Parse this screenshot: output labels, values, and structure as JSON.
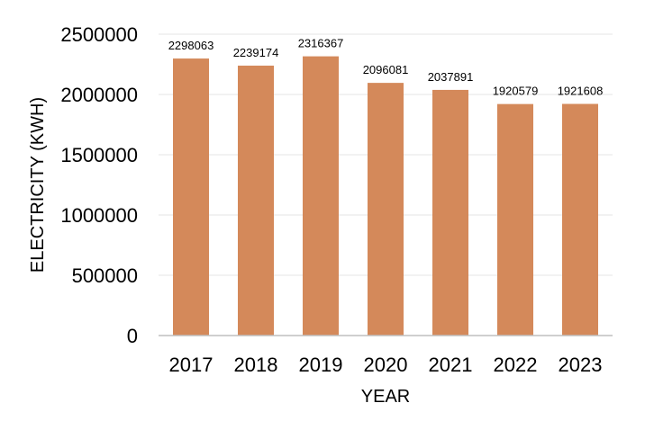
{
  "chart_data": {
    "type": "bar",
    "categories": [
      "2017",
      "2018",
      "2019",
      "2020",
      "2021",
      "2022",
      "2023"
    ],
    "values": [
      2298063,
      2239174,
      2316367,
      2096081,
      2037891,
      1920579,
      1921608
    ],
    "data_labels": [
      "2298063",
      "2239174",
      "2316367",
      "2096081",
      "2037891",
      "1920579",
      "1921608"
    ],
    "title": "",
    "xlabel": "YEAR",
    "ylabel": "ELECTRICITY (KWH)",
    "ylim": [
      0,
      2500000
    ],
    "yticks": [
      0,
      500000,
      1000000,
      1500000,
      2000000,
      2500000
    ],
    "ytick_labels": [
      "0",
      "500000",
      "1000000",
      "1500000",
      "2000000",
      "2500000"
    ],
    "grid": true,
    "legend": "none",
    "colors": {
      "bar": "#d4895a",
      "grid": "#e6e6e6",
      "axis": "#bfbfbf"
    }
  }
}
